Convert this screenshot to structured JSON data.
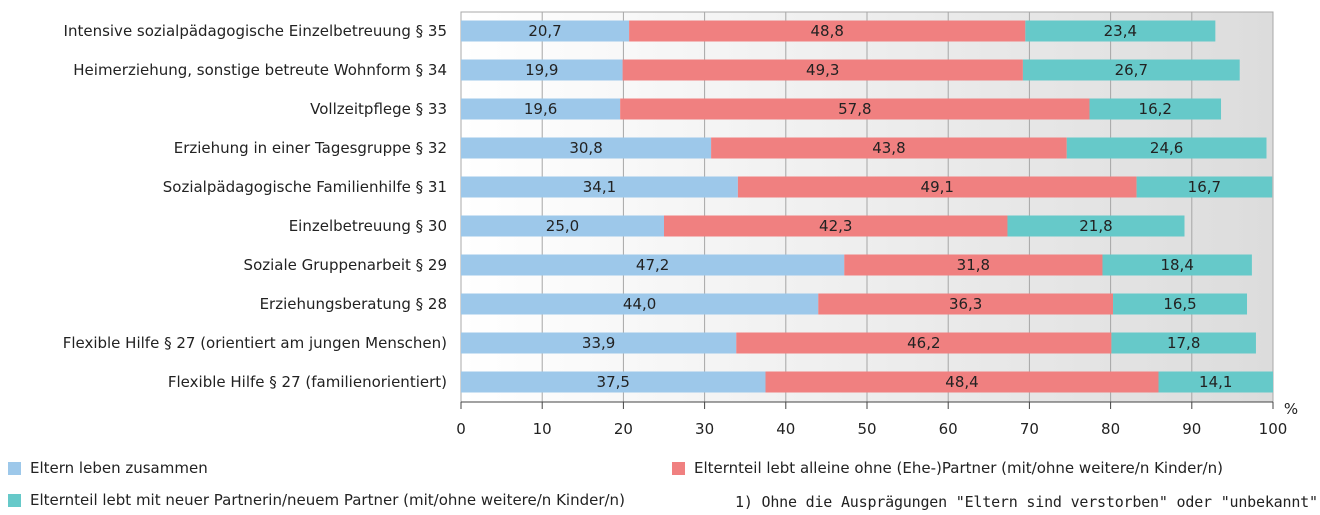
{
  "chart_data": {
    "type": "bar",
    "orientation": "horizontal",
    "stacked": true,
    "categories": [
      "Intensive sozialpädagogische Einzelbetreuung § 35",
      "Heimerziehung, sonstige betreute Wohnform § 34",
      "Vollzeitpflege § 33",
      "Erziehung in einer Tagesgruppe § 32",
      "Sozialpädagogische Familienhilfe § 31",
      "Einzelbetreuung § 30",
      "Soziale Gruppenarbeit § 29",
      "Erziehungsberatung § 28",
      "Flexible Hilfe § 27 (orientiert am jungen Menschen)",
      "Flexible Hilfe § 27 (familienorientiert)"
    ],
    "series": [
      {
        "name": "Eltern leben zusammen",
        "color": "#9dc8ea",
        "values": [
          20.7,
          19.9,
          19.6,
          30.8,
          34.1,
          25.0,
          47.2,
          44.0,
          33.9,
          37.5
        ],
        "labels": [
          "20,7",
          "19,9",
          "19,6",
          "30,8",
          "34,1",
          "25,0",
          "47,2",
          "44,0",
          "33,9",
          "37,5"
        ]
      },
      {
        "name": "Elternteil lebt alleine ohne (Ehe-)Partner (mit/ohne weitere/n Kinder/n)",
        "color": "#f08080",
        "values": [
          48.8,
          49.3,
          57.8,
          43.8,
          49.1,
          42.3,
          31.8,
          36.3,
          46.2,
          48.4
        ],
        "labels": [
          "48,8",
          "49,3",
          "57,8",
          "43,8",
          "49,1",
          "42,3",
          "31,8",
          "36,3",
          "46,2",
          "48,4"
        ]
      },
      {
        "name": "Elternteil lebt mit neuer Partnerin/neuem Partner (mit/ohne weitere/n Kinder/n)",
        "color": "#66c9c9",
        "values": [
          23.4,
          26.7,
          16.2,
          24.6,
          16.7,
          21.8,
          18.4,
          16.5,
          17.8,
          14.1
        ],
        "labels": [
          "23,4",
          "26,7",
          "16,2",
          "24,6",
          "16,7",
          "21,8",
          "18,4",
          "16,5",
          "17,8",
          "14,1"
        ]
      }
    ],
    "xlim": [
      0,
      100
    ],
    "xticks": [
      "0",
      "10",
      "20",
      "30",
      "40",
      "50",
      "60",
      "70",
      "80",
      "90",
      "100"
    ],
    "xunit": "%",
    "grid": true,
    "legend_position": "bottom"
  },
  "footnote": "1) Ohne die Ausprägungen \"Eltern sind verstorben\" oder \"unbekannt\"."
}
